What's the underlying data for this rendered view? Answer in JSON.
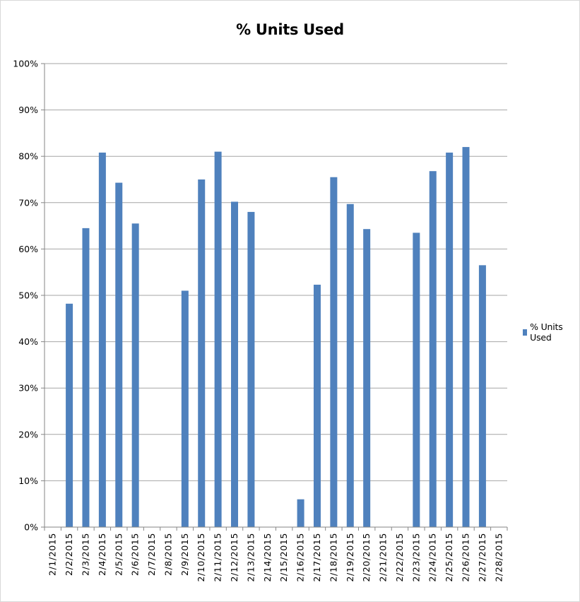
{
  "chart_data": {
    "type": "bar",
    "title": "% Units Used",
    "xlabel": "",
    "ylabel": "",
    "ylim": [
      0,
      100
    ],
    "y_ticks": [
      "0%",
      "10%",
      "20%",
      "30%",
      "40%",
      "50%",
      "60%",
      "70%",
      "80%",
      "90%",
      "100%"
    ],
    "grid": true,
    "legend_position": "right",
    "categories": [
      "2/1/2015",
      "2/2/2015",
      "2/3/2015",
      "2/4/2015",
      "2/5/2015",
      "2/6/2015",
      "2/7/2015",
      "2/8/2015",
      "2/9/2015",
      "2/10/2015",
      "2/11/2015",
      "2/12/2015",
      "2/13/2015",
      "2/14/2015",
      "2/15/2015",
      "2/16/2015",
      "2/17/2015",
      "2/18/2015",
      "2/19/2015",
      "2/20/2015",
      "2/21/2015",
      "2/22/2015",
      "2/23/2015",
      "2/24/2015",
      "2/25/2015",
      "2/26/2015",
      "2/27/2015",
      "2/28/2015"
    ],
    "series": [
      {
        "name": "% Units Used",
        "color": "#4f81bd",
        "values": [
          0,
          48.2,
          64.5,
          80.8,
          74.3,
          65.5,
          0,
          0,
          51.0,
          75.0,
          81.0,
          70.2,
          68.0,
          0,
          0,
          6.0,
          52.3,
          75.5,
          69.7,
          64.3,
          0,
          0,
          63.5,
          76.8,
          80.8,
          82.0,
          56.5,
          0
        ]
      }
    ]
  }
}
